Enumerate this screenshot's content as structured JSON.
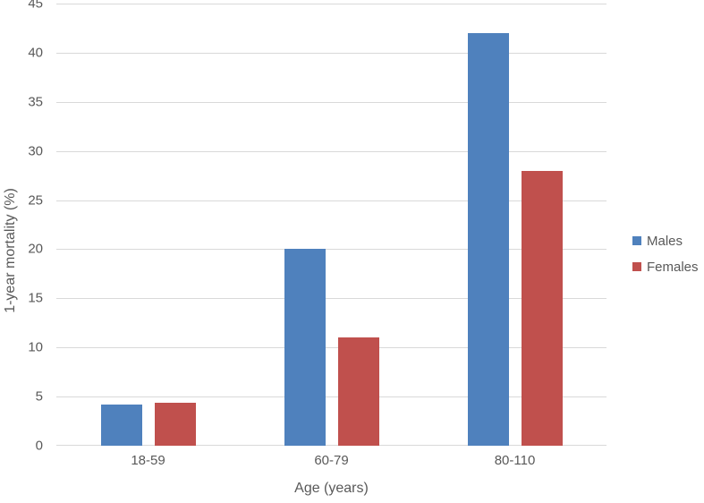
{
  "chart_data": {
    "type": "bar",
    "categories": [
      "18-59",
      "60-79",
      "80-110"
    ],
    "series": [
      {
        "name": "Males",
        "color": "#4F81BD",
        "values": [
          4.2,
          20,
          42
        ]
      },
      {
        "name": "Females",
        "color": "#C0504D",
        "values": [
          4.4,
          11,
          28
        ]
      }
    ],
    "xlabel": "Age (years)",
    "ylabel": "1-year mortality (%)",
    "ylim": [
      0,
      45
    ],
    "ytick_step": 5,
    "yticks": [
      0,
      5,
      10,
      15,
      20,
      25,
      30,
      35,
      40,
      45
    ],
    "grid": true,
    "legend_position": "right-middle"
  },
  "style": {
    "background": "#FFFFFF",
    "gridline_color": "#D9D9D9",
    "text_color": "#595959"
  }
}
